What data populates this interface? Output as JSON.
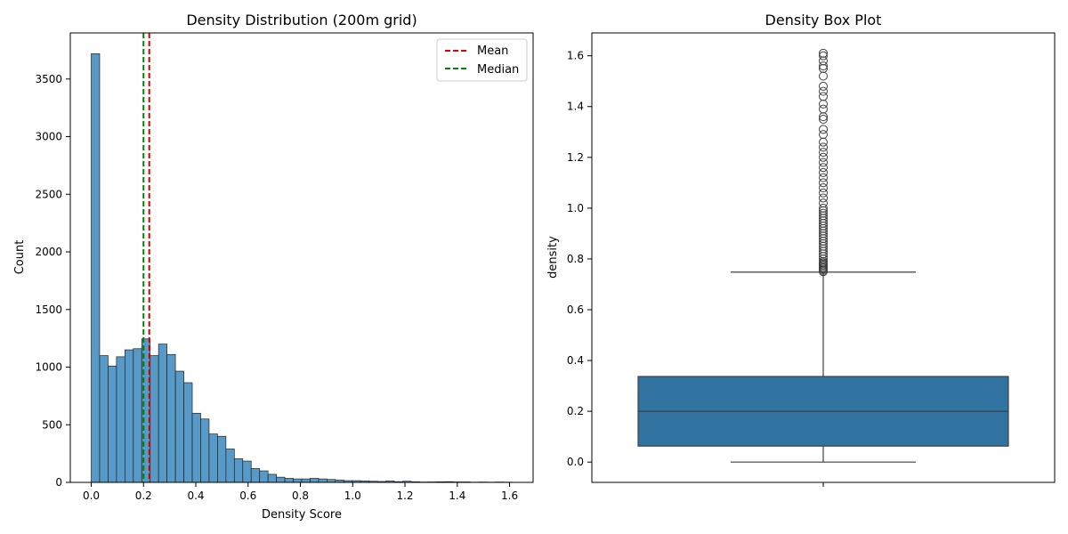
{
  "chart_data": [
    {
      "type": "bar",
      "title": "Density Distribution (200m grid)",
      "xlabel": "Density Score",
      "ylabel": "Count",
      "xlim": [
        -0.08,
        1.69
      ],
      "ylim": [
        0,
        3900
      ],
      "x_ticks": [
        0.0,
        0.2,
        0.4,
        0.6,
        0.8,
        1.0,
        1.2,
        1.4,
        1.6
      ],
      "x_tick_labels": [
        "0.0",
        "0.2",
        "0.4",
        "0.6",
        "0.8",
        "1.0",
        "1.2",
        "1.4",
        "1.6"
      ],
      "y_ticks": [
        0,
        500,
        1000,
        1500,
        2000,
        2500,
        3000,
        3500
      ],
      "y_tick_labels": [
        "0",
        "500",
        "1000",
        "1500",
        "2000",
        "2500",
        "3000",
        "3500"
      ],
      "bin_width": 0.0322,
      "bin_start": 0.0,
      "counts": [
        3720,
        1100,
        1010,
        1090,
        1150,
        1160,
        1245,
        1100,
        1200,
        1110,
        965,
        865,
        600,
        550,
        420,
        400,
        290,
        205,
        185,
        120,
        100,
        70,
        45,
        35,
        30,
        30,
        35,
        30,
        25,
        20,
        15,
        15,
        12,
        10,
        8,
        12,
        6,
        10,
        5,
        3,
        4,
        5,
        6,
        4,
        4,
        2,
        3,
        2,
        3,
        2
      ],
      "bar_color": "#5497c6",
      "vlines": [
        {
          "name": "Mean",
          "x": 0.222,
          "color": "#e00000"
        },
        {
          "name": "Median",
          "x": 0.2,
          "color": "#008000"
        }
      ],
      "legend_position": "top-right",
      "grid": false
    },
    {
      "type": "box",
      "title": "Density Box Plot",
      "xlabel": "",
      "ylabel": "density",
      "ylim": [
        -0.08,
        1.69
      ],
      "y_ticks": [
        0.0,
        0.2,
        0.4,
        0.6,
        0.8,
        1.0,
        1.2,
        1.4,
        1.6
      ],
      "y_tick_labels": [
        "0.0",
        "0.2",
        "0.4",
        "0.6",
        "0.8",
        "1.0",
        "1.2",
        "1.4",
        "1.6"
      ],
      "whisker_low": 0.0,
      "q1": 0.063,
      "median": 0.2,
      "q3": 0.337,
      "whisker_high": 0.748,
      "outliers": [
        0.75,
        0.755,
        0.76,
        0.765,
        0.77,
        0.775,
        0.78,
        0.785,
        0.79,
        0.8,
        0.81,
        0.82,
        0.83,
        0.84,
        0.85,
        0.86,
        0.87,
        0.88,
        0.89,
        0.9,
        0.91,
        0.92,
        0.93,
        0.94,
        0.95,
        0.96,
        0.97,
        0.98,
        0.99,
        1.0,
        1.02,
        1.04,
        1.06,
        1.08,
        1.1,
        1.12,
        1.14,
        1.16,
        1.18,
        1.2,
        1.22,
        1.24,
        1.26,
        1.29,
        1.31,
        1.35,
        1.36,
        1.39,
        1.41,
        1.44,
        1.46,
        1.48,
        1.52,
        1.55,
        1.56,
        1.58,
        1.6,
        1.61
      ],
      "box_color": "#3274a1",
      "grid": false
    }
  ]
}
